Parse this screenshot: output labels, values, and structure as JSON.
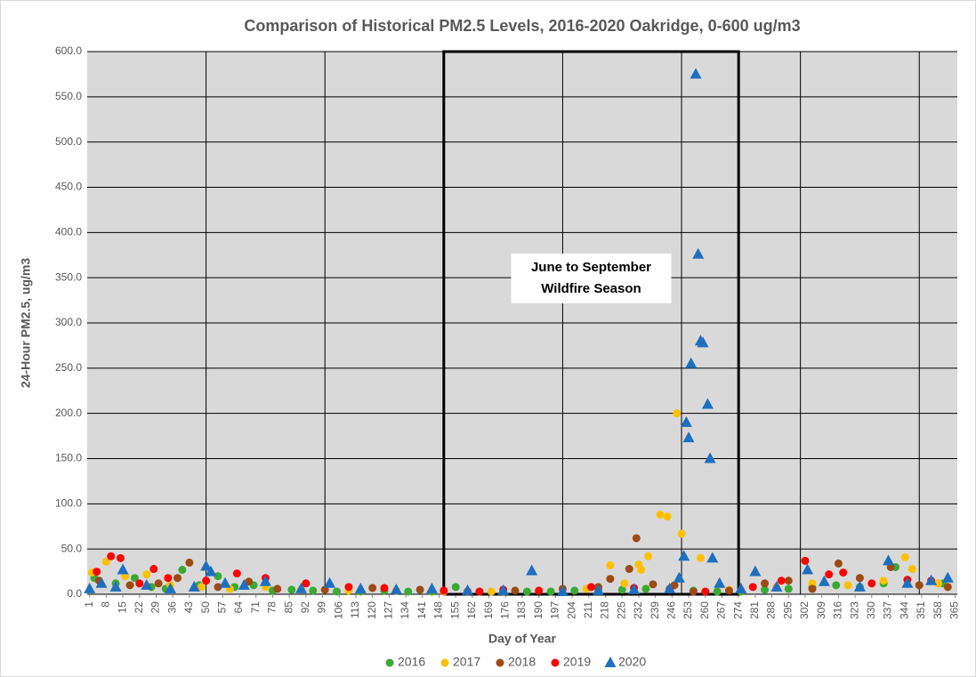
{
  "chart_data": {
    "type": "scatter",
    "title": "Comparison of Historical PM2.5 Levels, 2016-2020 Oakridge, 0-600 ug/m3",
    "x_label": "Day of Year",
    "y_label": "24-Hour PM2.5, ug/m3",
    "xlim": [
      0,
      366
    ],
    "ylim": [
      0,
      600
    ],
    "xticks": [
      1,
      8,
      15,
      22,
      29,
      36,
      43,
      50,
      57,
      64,
      71,
      78,
      85,
      92,
      99,
      106,
      113,
      120,
      127,
      134,
      141,
      148,
      155,
      162,
      169,
      176,
      183,
      190,
      197,
      204,
      211,
      218,
      225,
      232,
      239,
      246,
      253,
      260,
      267,
      274,
      281,
      288,
      295,
      302,
      309,
      316,
      323,
      330,
      337,
      344,
      351,
      358,
      365
    ],
    "xgrid": [
      50,
      100,
      150,
      200,
      250,
      300,
      350
    ],
    "yticks": [
      {
        "value": 0,
        "label": "0.0"
      },
      {
        "value": 50,
        "label": "50.0"
      },
      {
        "value": 100,
        "label": "100.0"
      },
      {
        "value": 150,
        "label": "150.0"
      },
      {
        "value": 200,
        "label": "200.0"
      },
      {
        "value": 250,
        "label": "250.0"
      },
      {
        "value": 300,
        "label": "300.0"
      },
      {
        "value": 350,
        "label": "350.0"
      },
      {
        "value": 400,
        "label": "400.0"
      },
      {
        "value": 450,
        "label": "450.0"
      },
      {
        "value": 500,
        "label": "500.0"
      },
      {
        "value": 550,
        "label": "550.0"
      },
      {
        "value": 600,
        "label": "600.0"
      }
    ],
    "grid": true,
    "legend": "bottom",
    "annotation": {
      "text": [
        "June to September",
        "Wildfire Season"
      ],
      "x1": 150,
      "x2": 274
    },
    "series": [
      {
        "name": "2016",
        "color": "#3aa935",
        "marker": "circle",
        "x": [
          3,
          12,
          20,
          27,
          33,
          40,
          47,
          55,
          62,
          70,
          78,
          86,
          95,
          105,
          115,
          125,
          135,
          145,
          155,
          165,
          175,
          185,
          195,
          205,
          215,
          225,
          235,
          245,
          255,
          265,
          275,
          285,
          295,
          305,
          315,
          325,
          335,
          340,
          350,
          360
        ],
        "values": [
          18,
          12,
          18,
          8,
          6,
          27,
          10,
          20,
          8,
          10,
          4,
          5,
          4,
          3,
          3,
          4,
          3,
          3,
          8,
          3,
          3,
          3,
          3,
          4,
          5,
          5,
          6,
          6,
          4,
          3,
          3,
          5,
          6,
          8,
          10,
          8,
          12,
          30,
          10,
          12
        ]
      },
      {
        "name": "2017",
        "color": "#ffc000",
        "marker": "circle",
        "x": [
          2,
          8,
          16,
          25,
          35,
          48,
          60,
          75,
          90,
          110,
          130,
          150,
          170,
          190,
          210,
          220,
          226,
          232,
          233,
          236,
          241,
          244,
          248,
          250,
          258,
          270,
          290,
          305,
          320,
          335,
          344,
          347,
          358
        ],
        "values": [
          24,
          36,
          20,
          22,
          10,
          8,
          6,
          8,
          5,
          4,
          4,
          3,
          3,
          4,
          6,
          32,
          12,
          33,
          27,
          42,
          88,
          86,
          200,
          67,
          40,
          5,
          8,
          12,
          10,
          15,
          41,
          28,
          12
        ]
      },
      {
        "name": "2018",
        "color": "#9e4a14",
        "marker": "circle",
        "x": [
          5,
          18,
          30,
          38,
          43,
          55,
          68,
          80,
          100,
          120,
          140,
          160,
          180,
          200,
          215,
          220,
          228,
          231,
          238,
          247,
          255,
          270,
          285,
          295,
          305,
          316,
          325,
          338,
          350,
          362
        ],
        "values": [
          15,
          10,
          12,
          18,
          35,
          8,
          14,
          6,
          5,
          7,
          5,
          3,
          4,
          6,
          8,
          17,
          28,
          62,
          11,
          10,
          3,
          4,
          12,
          15,
          6,
          34,
          18,
          30,
          10,
          8
        ]
      },
      {
        "name": "2019",
        "color": "#ff0000",
        "marker": "circle",
        "x": [
          4,
          10,
          14,
          22,
          28,
          34,
          50,
          63,
          75,
          92,
          110,
          125,
          150,
          165,
          175,
          190,
          212,
          230,
          245,
          260,
          280,
          292,
          302,
          312,
          318,
          330,
          345,
          355
        ],
        "values": [
          25,
          42,
          40,
          12,
          28,
          18,
          15,
          23,
          18,
          12,
          8,
          7,
          4,
          3,
          5,
          4,
          8,
          7,
          5,
          3,
          8,
          15,
          37,
          22,
          24,
          12,
          16,
          15
        ]
      },
      {
        "name": "2020",
        "color": "#1f6fbf",
        "marker": "triangle",
        "x": [
          1,
          6,
          12,
          15,
          25,
          35,
          45,
          50,
          52,
          58,
          66,
          75,
          90,
          102,
          115,
          130,
          145,
          160,
          175,
          187,
          200,
          215,
          230,
          245,
          249,
          251,
          252,
          253,
          254,
          256,
          257,
          258,
          259,
          261,
          262,
          263,
          266,
          275,
          281,
          290,
          303,
          310,
          325,
          337,
          345,
          355,
          362
        ],
        "values": [
          6,
          12,
          8,
          27,
          10,
          6,
          8,
          31,
          25,
          12,
          10,
          14,
          6,
          12,
          6,
          5,
          6,
          4,
          4,
          26,
          3,
          4,
          5,
          6,
          18,
          42,
          190,
          173,
          255,
          575,
          376,
          280,
          278,
          210,
          150,
          40,
          12,
          6,
          25,
          8,
          27,
          14,
          8,
          37,
          12,
          15,
          18
        ]
      }
    ]
  }
}
